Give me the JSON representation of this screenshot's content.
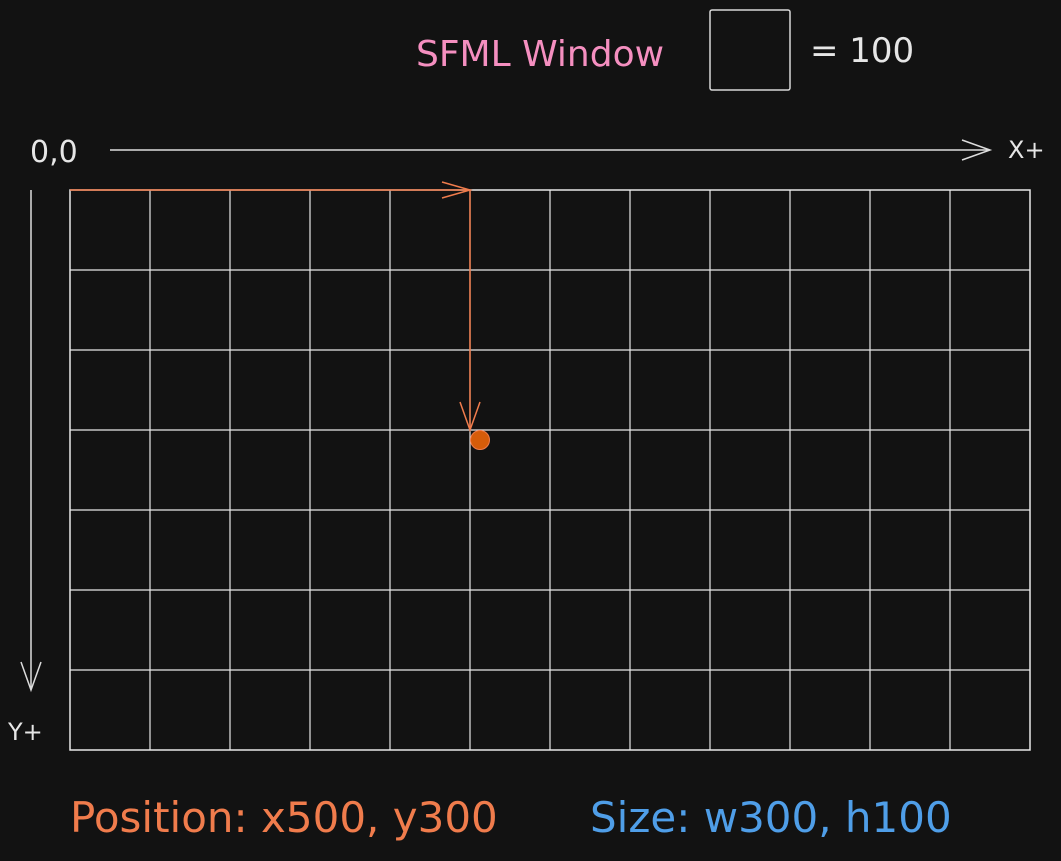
{
  "header": {
    "title": "SFML Window",
    "scale_label": "= 100"
  },
  "axes": {
    "origin_label": "0,0",
    "x_label": "X+",
    "y_label": "Y+"
  },
  "grid": {
    "columns": 12,
    "rows": 7,
    "cell_units": 100
  },
  "point": {
    "x": 500,
    "y": 300
  },
  "footer": {
    "position_label": "Position: x500, y300",
    "size_label": "Size: w300, h100"
  },
  "colors": {
    "background": "#121212",
    "grid": "#e8e8e8",
    "title": "#f58fc0",
    "position": "#f07c4c",
    "size": "#4f9ee8",
    "point": "#d65c0a",
    "axis": "#dcdcdc"
  }
}
